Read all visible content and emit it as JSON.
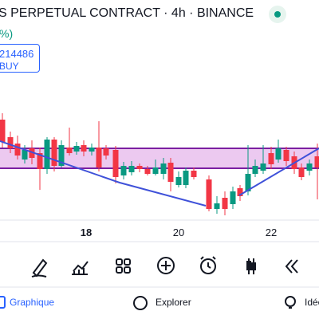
{
  "header": {
    "title": "S PERPETUAL CONTRACT · 4h · BINANCE",
    "change": "%)"
  },
  "order": {
    "id": "214486",
    "side": "BUY"
  },
  "x_axis": {
    "labels": [
      "18",
      "20",
      "22"
    ]
  },
  "nav": {
    "items": [
      "Graphique",
      "Explorer",
      "Idée"
    ]
  }
}
